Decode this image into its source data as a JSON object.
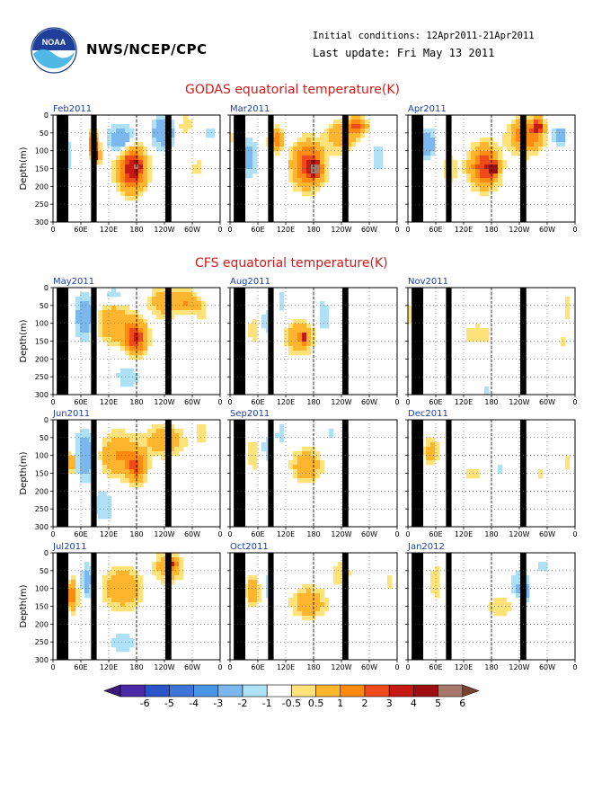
{
  "header": {
    "org": "NWS/NCEP/CPC",
    "initial_conditions": "Initial conditions: 12Apr2011-21Apr2011",
    "last_update": "Last update: Fri May 13 2011",
    "logo_text": "NOAA"
  },
  "sections": {
    "godas_title": "GODAS equatorial temperature(K)",
    "cfs_title": "CFS equatorial temperature(K)"
  },
  "colors": {
    "masked": "#000000",
    "neg6": "#4b2aa6",
    "neg5": "#2b53c8",
    "neg4": "#3d76d8",
    "neg3": "#4a96e6",
    "neg2": "#7cb8ee",
    "neg1": "#aee0f6",
    "zero": "#ffffff",
    "pos05": "#ffe27a",
    "pos1": "#ffb52e",
    "pos2": "#ff8a12",
    "pos3": "#ef4a1c",
    "pos4": "#c51a14",
    "pos5": "#9c0e10",
    "pos6": "#a8786a",
    "max": "#7a4030"
  },
  "chart_data": {
    "type": "heatmap",
    "ylabel": "Depth(m)",
    "ylim": [
      0,
      300
    ],
    "yticks": [
      "0",
      "50",
      "100",
      "150",
      "200",
      "250",
      "300"
    ],
    "xticks": [
      "0",
      "60E",
      "120E",
      "180",
      "120W",
      "60W",
      "0"
    ],
    "xlim_deg": [
      0,
      360
    ],
    "colorbar": {
      "labels": [
        "-6",
        "-5",
        "-4",
        "-3",
        "-2",
        "-1",
        "-0.5",
        "0.5",
        "1",
        "2",
        "3",
        "4",
        "5",
        "6"
      ]
    },
    "panels": [
      {
        "group": "godas",
        "title": "Feb2011",
        "features": [
          {
            "lon": 30,
            "depth": 110,
            "rx": 16,
            "ry": 50,
            "amp": -1
          },
          {
            "lon": 88,
            "depth": 80,
            "rx": 10,
            "ry": 28,
            "amp": 4
          },
          {
            "lon": 94,
            "depth": 115,
            "rx": 7,
            "ry": 16,
            "amp": 6
          },
          {
            "lon": 150,
            "depth": 70,
            "rx": 30,
            "ry": 40,
            "amp": -2
          },
          {
            "lon": 170,
            "depth": 150,
            "rx": 28,
            "ry": 60,
            "amp": 5
          },
          {
            "lon": 182,
            "depth": 145,
            "rx": 6,
            "ry": 12,
            "amp": 6
          },
          {
            "lon": 238,
            "depth": 50,
            "rx": 25,
            "ry": 45,
            "amp": -2
          },
          {
            "lon": 285,
            "depth": 30,
            "rx": 15,
            "ry": 30,
            "amp": 1
          },
          {
            "lon": 310,
            "depth": 150,
            "rx": 8,
            "ry": 30,
            "amp": 1
          },
          {
            "lon": 340,
            "depth": 50,
            "rx": 8,
            "ry": 25,
            "amp": -1
          }
        ]
      },
      {
        "group": "godas",
        "title": "Mar2011",
        "features": [
          {
            "lon": 40,
            "depth": 120,
            "rx": 18,
            "ry": 60,
            "amp": -1.5
          },
          {
            "lon": 100,
            "depth": 70,
            "rx": 14,
            "ry": 30,
            "amp": 3
          },
          {
            "lon": 168,
            "depth": 140,
            "rx": 32,
            "ry": 60,
            "amp": 4
          },
          {
            "lon": 185,
            "depth": 150,
            "rx": 10,
            "ry": 20,
            "amp": 5
          },
          {
            "lon": 240,
            "depth": 60,
            "rx": 30,
            "ry": 40,
            "amp": 2
          },
          {
            "lon": 275,
            "depth": 30,
            "rx": 20,
            "ry": 25,
            "amp": 3
          },
          {
            "lon": 320,
            "depth": 120,
            "rx": 12,
            "ry": 40,
            "amp": -1
          },
          {
            "lon": 15,
            "depth": 60,
            "rx": 8,
            "ry": 30,
            "amp": 3
          }
        ]
      },
      {
        "group": "godas",
        "title": "Apr2011",
        "features": [
          {
            "lon": 40,
            "depth": 80,
            "rx": 18,
            "ry": 40,
            "amp": -2
          },
          {
            "lon": 90,
            "depth": 150,
            "rx": 20,
            "ry": 40,
            "amp": 1
          },
          {
            "lon": 165,
            "depth": 145,
            "rx": 30,
            "ry": 55,
            "amp": 4
          },
          {
            "lon": 185,
            "depth": 150,
            "rx": 8,
            "ry": 15,
            "amp": 5
          },
          {
            "lon": 255,
            "depth": 60,
            "rx": 35,
            "ry": 45,
            "amp": 3
          },
          {
            "lon": 280,
            "depth": 30,
            "rx": 12,
            "ry": 20,
            "amp": 4
          },
          {
            "lon": 310,
            "depth": 50,
            "rx": 10,
            "ry": 30,
            "amp": -1
          },
          {
            "lon": 330,
            "depth": 60,
            "rx": 10,
            "ry": 25,
            "amp": -2
          }
        ]
      },
      {
        "group": "cfs",
        "title": "May2011",
        "features": [
          {
            "lon": 70,
            "depth": 80,
            "rx": 22,
            "ry": 60,
            "amp": -2
          },
          {
            "lon": 130,
            "depth": 100,
            "rx": 35,
            "ry": 55,
            "amp": 2
          },
          {
            "lon": 178,
            "depth": 140,
            "rx": 22,
            "ry": 45,
            "amp": 4
          },
          {
            "lon": 240,
            "depth": 40,
            "rx": 30,
            "ry": 40,
            "amp": 2
          },
          {
            "lon": 290,
            "depth": 40,
            "rx": 20,
            "ry": 30,
            "amp": 2
          },
          {
            "lon": 320,
            "depth": 60,
            "rx": 12,
            "ry": 30,
            "amp": 1
          },
          {
            "lon": 160,
            "depth": 250,
            "rx": 30,
            "ry": 40,
            "amp": -0.8
          },
          {
            "lon": 130,
            "depth": 20,
            "rx": 20,
            "ry": 20,
            "amp": -1
          }
        ]
      },
      {
        "group": "cfs",
        "title": "Aug2011",
        "features": [
          {
            "lon": 50,
            "depth": 120,
            "rx": 15,
            "ry": 35,
            "amp": 1
          },
          {
            "lon": 80,
            "depth": 100,
            "rx": 14,
            "ry": 40,
            "amp": -1
          },
          {
            "lon": 150,
            "depth": 140,
            "rx": 28,
            "ry": 45,
            "amp": 2
          },
          {
            "lon": 160,
            "depth": 140,
            "rx": 8,
            "ry": 15,
            "amp": 3
          },
          {
            "lon": 200,
            "depth": 80,
            "rx": 14,
            "ry": 50,
            "amp": -1
          },
          {
            "lon": 110,
            "depth": 40,
            "rx": 10,
            "ry": 30,
            "amp": -1
          }
        ]
      },
      {
        "group": "cfs",
        "title": "Nov2011",
        "features": [
          {
            "lon": 10,
            "depth": 80,
            "rx": 10,
            "ry": 40,
            "amp": 1
          },
          {
            "lon": 150,
            "depth": 130,
            "rx": 40,
            "ry": 35,
            "amp": 0.8
          },
          {
            "lon": 345,
            "depth": 60,
            "rx": 8,
            "ry": 40,
            "amp": 1
          },
          {
            "lon": 330,
            "depth": 150,
            "rx": 8,
            "ry": 30,
            "amp": 0.8
          },
          {
            "lon": 170,
            "depth": 290,
            "rx": 10,
            "ry": 20,
            "amp": -0.8
          }
        ]
      },
      {
        "group": "cfs",
        "title": "Jun2011",
        "features": [
          {
            "lon": 70,
            "depth": 100,
            "rx": 22,
            "ry": 70,
            "amp": -2
          },
          {
            "lon": 40,
            "depth": 120,
            "rx": 10,
            "ry": 30,
            "amp": 2
          },
          {
            "lon": 140,
            "depth": 100,
            "rx": 40,
            "ry": 60,
            "amp": 2
          },
          {
            "lon": 180,
            "depth": 130,
            "rx": 20,
            "ry": 40,
            "amp": 3
          },
          {
            "lon": 240,
            "depth": 60,
            "rx": 40,
            "ry": 40,
            "amp": 2
          },
          {
            "lon": 320,
            "depth": 40,
            "rx": 12,
            "ry": 30,
            "amp": 1
          },
          {
            "lon": 110,
            "depth": 240,
            "rx": 25,
            "ry": 50,
            "amp": -1
          }
        ]
      },
      {
        "group": "cfs",
        "title": "Sep2011",
        "features": [
          {
            "lon": 50,
            "depth": 100,
            "rx": 15,
            "ry": 45,
            "amp": 1
          },
          {
            "lon": 80,
            "depth": 80,
            "rx": 12,
            "ry": 40,
            "amp": -1
          },
          {
            "lon": 165,
            "depth": 130,
            "rx": 30,
            "ry": 45,
            "amp": 2
          },
          {
            "lon": 110,
            "depth": 40,
            "rx": 10,
            "ry": 30,
            "amp": -1
          },
          {
            "lon": 220,
            "depth": 40,
            "rx": 10,
            "ry": 25,
            "amp": -0.8
          }
        ]
      },
      {
        "group": "cfs",
        "title": "Dec2011",
        "features": [
          {
            "lon": 50,
            "depth": 90,
            "rx": 16,
            "ry": 40,
            "amp": 1.5
          },
          {
            "lon": 140,
            "depth": 150,
            "rx": 18,
            "ry": 25,
            "amp": 0.8
          },
          {
            "lon": 200,
            "depth": 140,
            "rx": 10,
            "ry": 20,
            "amp": -1
          },
          {
            "lon": 290,
            "depth": 150,
            "rx": 8,
            "ry": 20,
            "amp": 0.8
          },
          {
            "lon": 345,
            "depth": 120,
            "rx": 6,
            "ry": 30,
            "amp": 0.8
          }
        ]
      },
      {
        "group": "cfs",
        "title": "Jul2011",
        "features": [
          {
            "lon": 40,
            "depth": 120,
            "rx": 12,
            "ry": 40,
            "amp": 3
          },
          {
            "lon": 75,
            "depth": 80,
            "rx": 15,
            "ry": 50,
            "amp": -1.5
          },
          {
            "lon": 150,
            "depth": 100,
            "rx": 40,
            "ry": 55,
            "amp": 2
          },
          {
            "lon": 250,
            "depth": 40,
            "rx": 30,
            "ry": 40,
            "amp": 2
          },
          {
            "lon": 260,
            "depth": 30,
            "rx": 6,
            "ry": 12,
            "amp": 4
          },
          {
            "lon": 150,
            "depth": 250,
            "rx": 30,
            "ry": 40,
            "amp": -0.8
          }
        ]
      },
      {
        "group": "cfs",
        "title": "Oct2011",
        "features": [
          {
            "lon": 50,
            "depth": 110,
            "rx": 15,
            "ry": 40,
            "amp": 2
          },
          {
            "lon": 80,
            "depth": 100,
            "rx": 12,
            "ry": 40,
            "amp": -1
          },
          {
            "lon": 170,
            "depth": 140,
            "rx": 35,
            "ry": 40,
            "amp": 2
          },
          {
            "lon": 240,
            "depth": 60,
            "rx": 20,
            "ry": 40,
            "amp": 1
          },
          {
            "lon": 340,
            "depth": 80,
            "rx": 8,
            "ry": 40,
            "amp": 0.8
          }
        ]
      },
      {
        "group": "cfs",
        "title": "Jan2012",
        "features": [
          {
            "lon": 60,
            "depth": 80,
            "rx": 15,
            "ry": 50,
            "amp": 1
          },
          {
            "lon": 200,
            "depth": 150,
            "rx": 40,
            "ry": 40,
            "amp": 0.8
          },
          {
            "lon": 240,
            "depth": 90,
            "rx": 25,
            "ry": 45,
            "amp": -1
          },
          {
            "lon": 250,
            "depth": 110,
            "rx": 10,
            "ry": 20,
            "amp": -2
          },
          {
            "lon": 290,
            "depth": 40,
            "rx": 10,
            "ry": 20,
            "amp": -1
          }
        ]
      }
    ]
  }
}
